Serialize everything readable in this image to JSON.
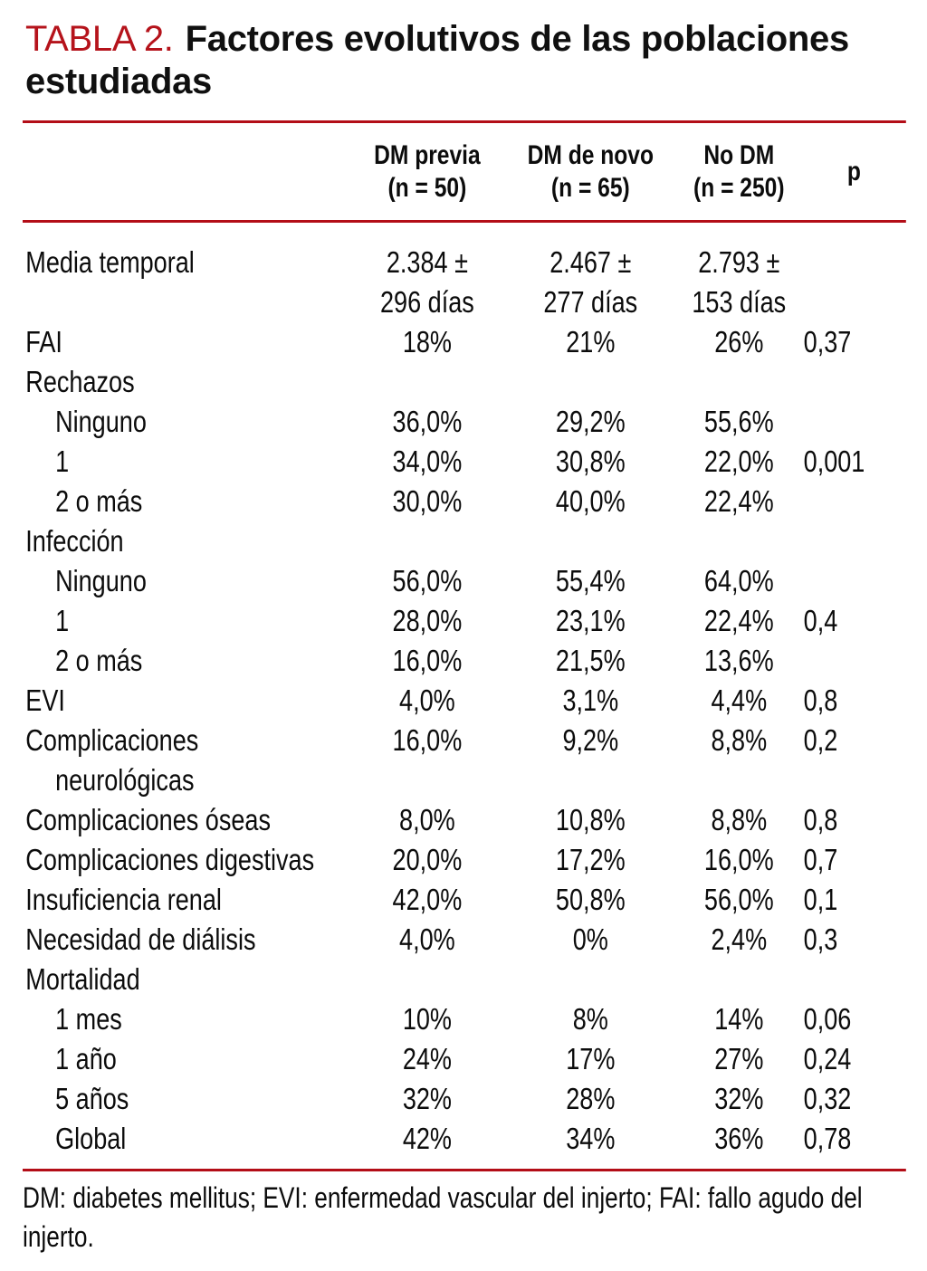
{
  "title": {
    "prefix": "TABLA 2.",
    "line1_rest": "Factores evolutivos de las poblaciones",
    "line2": "estudiadas"
  },
  "colors": {
    "accent_red_title": "#b5131b",
    "rule_red": "#b30d17",
    "text": "#0c0c0c",
    "background": "#ffffff"
  },
  "table": {
    "columns": [
      {
        "line1": "DM previa",
        "line2": "(n = 50)"
      },
      {
        "line1": "DM de novo",
        "line2": "(n = 65)"
      },
      {
        "line1": "No DM",
        "line2": "(n = 250)"
      },
      {
        "line1": "p",
        "line2": ""
      }
    ],
    "rows": [
      {
        "label": "Media temporal",
        "values": [
          "2.384 ±\n296 días",
          "2.467 ±\n277 días",
          "2.793 ±\n153 días",
          ""
        ]
      },
      {
        "label": "FAI",
        "values": [
          "18%",
          "21%",
          "26%",
          "0,37"
        ]
      },
      {
        "label": "Rechazos",
        "section": true,
        "values": [
          "",
          "",
          "",
          ""
        ]
      },
      {
        "label": "Ninguno",
        "indent": true,
        "values": [
          "36,0%",
          "29,2%",
          "55,6%",
          ""
        ]
      },
      {
        "label": "1",
        "indent": true,
        "values": [
          "34,0%",
          "30,8%",
          "22,0%",
          "0,001"
        ]
      },
      {
        "label": "2 o más",
        "indent": true,
        "values": [
          "30,0%",
          "40,0%",
          "22,4%",
          ""
        ]
      },
      {
        "label": "Infección",
        "section": true,
        "values": [
          "",
          "",
          "",
          ""
        ]
      },
      {
        "label": "Ninguno",
        "indent": true,
        "values": [
          "56,0%",
          "55,4%",
          "64,0%",
          ""
        ]
      },
      {
        "label": "1",
        "indent": true,
        "values": [
          "28,0%",
          "23,1%",
          "22,4%",
          "0,4"
        ]
      },
      {
        "label": "2 o más",
        "indent": true,
        "values": [
          "16,0%",
          "21,5%",
          "13,6%",
          ""
        ]
      },
      {
        "label": "EVI",
        "values": [
          "4,0%",
          "3,1%",
          "4,4%",
          "0,8"
        ]
      },
      {
        "label": "Complicaciones",
        "label2": "neurológicas",
        "values": [
          "16,0%",
          "9,2%",
          "8,8%",
          "0,2"
        ]
      },
      {
        "label": "Complicaciones óseas",
        "values": [
          "8,0%",
          "10,8%",
          "8,8%",
          "0,8"
        ]
      },
      {
        "label": "Complicaciones digestivas",
        "values": [
          "20,0%",
          "17,2%",
          "16,0%",
          "0,7"
        ]
      },
      {
        "label": "Insuficiencia renal",
        "values": [
          "42,0%",
          "50,8%",
          "56,0%",
          "0,1"
        ]
      },
      {
        "label": "Necesidad de diálisis",
        "values": [
          "4,0%",
          "0%",
          "2,4%",
          "0,3"
        ]
      },
      {
        "label": "Mortalidad",
        "section": true,
        "values": [
          "",
          "",
          "",
          ""
        ]
      },
      {
        "label": "1 mes",
        "indent": true,
        "values": [
          "10%",
          "8%",
          "14%",
          "0,06"
        ]
      },
      {
        "label": "1 año",
        "indent": true,
        "values": [
          "24%",
          "17%",
          "27%",
          "0,24"
        ]
      },
      {
        "label": "5 años",
        "indent": true,
        "values": [
          "32%",
          "28%",
          "32%",
          "0,32"
        ]
      },
      {
        "label": "Global",
        "indent": true,
        "values": [
          "42%",
          "34%",
          "36%",
          "0,78"
        ]
      }
    ]
  },
  "footnote": "DM: diabetes mellitus; EVI: enfermedad vascular del injerto; FAI: fallo agudo del injerto."
}
